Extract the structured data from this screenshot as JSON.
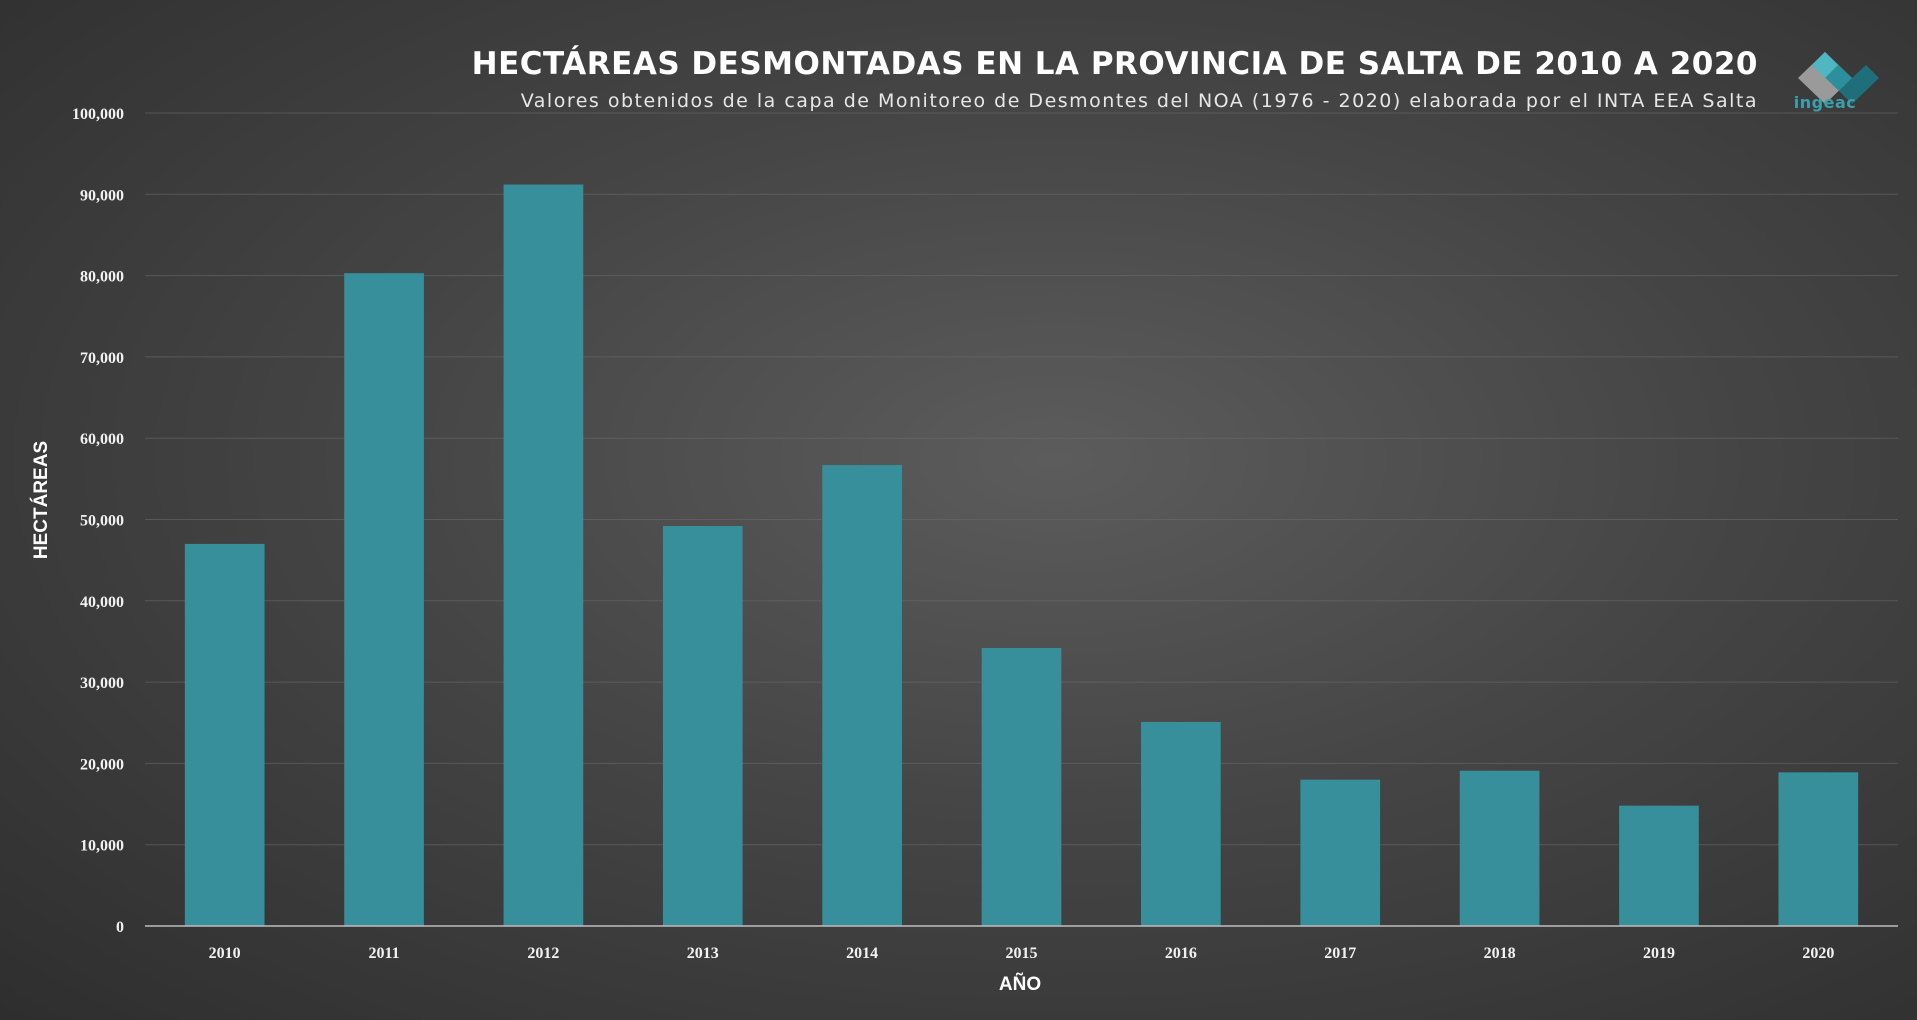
{
  "logo": {
    "text": "ingeac"
  },
  "colors": {
    "bar": "#368f9b",
    "background": "#4a4a4a",
    "text": "#ffffff"
  },
  "chart_data": {
    "type": "bar",
    "title": "HECTÁREAS DESMONTADAS  EN LA PROVINCIA DE SALTA DE 2010 A 2020",
    "subtitle": "Valores obtenidos  de la capa de Monitoreo  de Desmontes del NOA (1976 - 2020) elaborada por el INTA EEA Salta",
    "xlabel": "AÑO",
    "ylabel": "HECTÁREAS",
    "categories": [
      "2010",
      "2011",
      "2012",
      "2013",
      "2014",
      "2015",
      "2016",
      "2017",
      "2018",
      "2019",
      "2020"
    ],
    "values": [
      47000,
      80300,
      91200,
      49200,
      56700,
      34200,
      25100,
      18000,
      19100,
      14800,
      18900
    ],
    "ylim": [
      0,
      100000
    ],
    "yticks": [
      {
        "value": 0,
        "label": "0"
      },
      {
        "value": 10000,
        "label": "10,000"
      },
      {
        "value": 20000,
        "label": "20,000"
      },
      {
        "value": 30000,
        "label": "30,000"
      },
      {
        "value": 40000,
        "label": "40,000"
      },
      {
        "value": 50000,
        "label": "50,000"
      },
      {
        "value": 60000,
        "label": "60,000"
      },
      {
        "value": 70000,
        "label": "70,000"
      },
      {
        "value": 80000,
        "label": "80,000"
      },
      {
        "value": 90000,
        "label": "90,000"
      },
      {
        "value": 100000,
        "label": "100,000"
      }
    ],
    "grid": true,
    "legend": "none"
  }
}
